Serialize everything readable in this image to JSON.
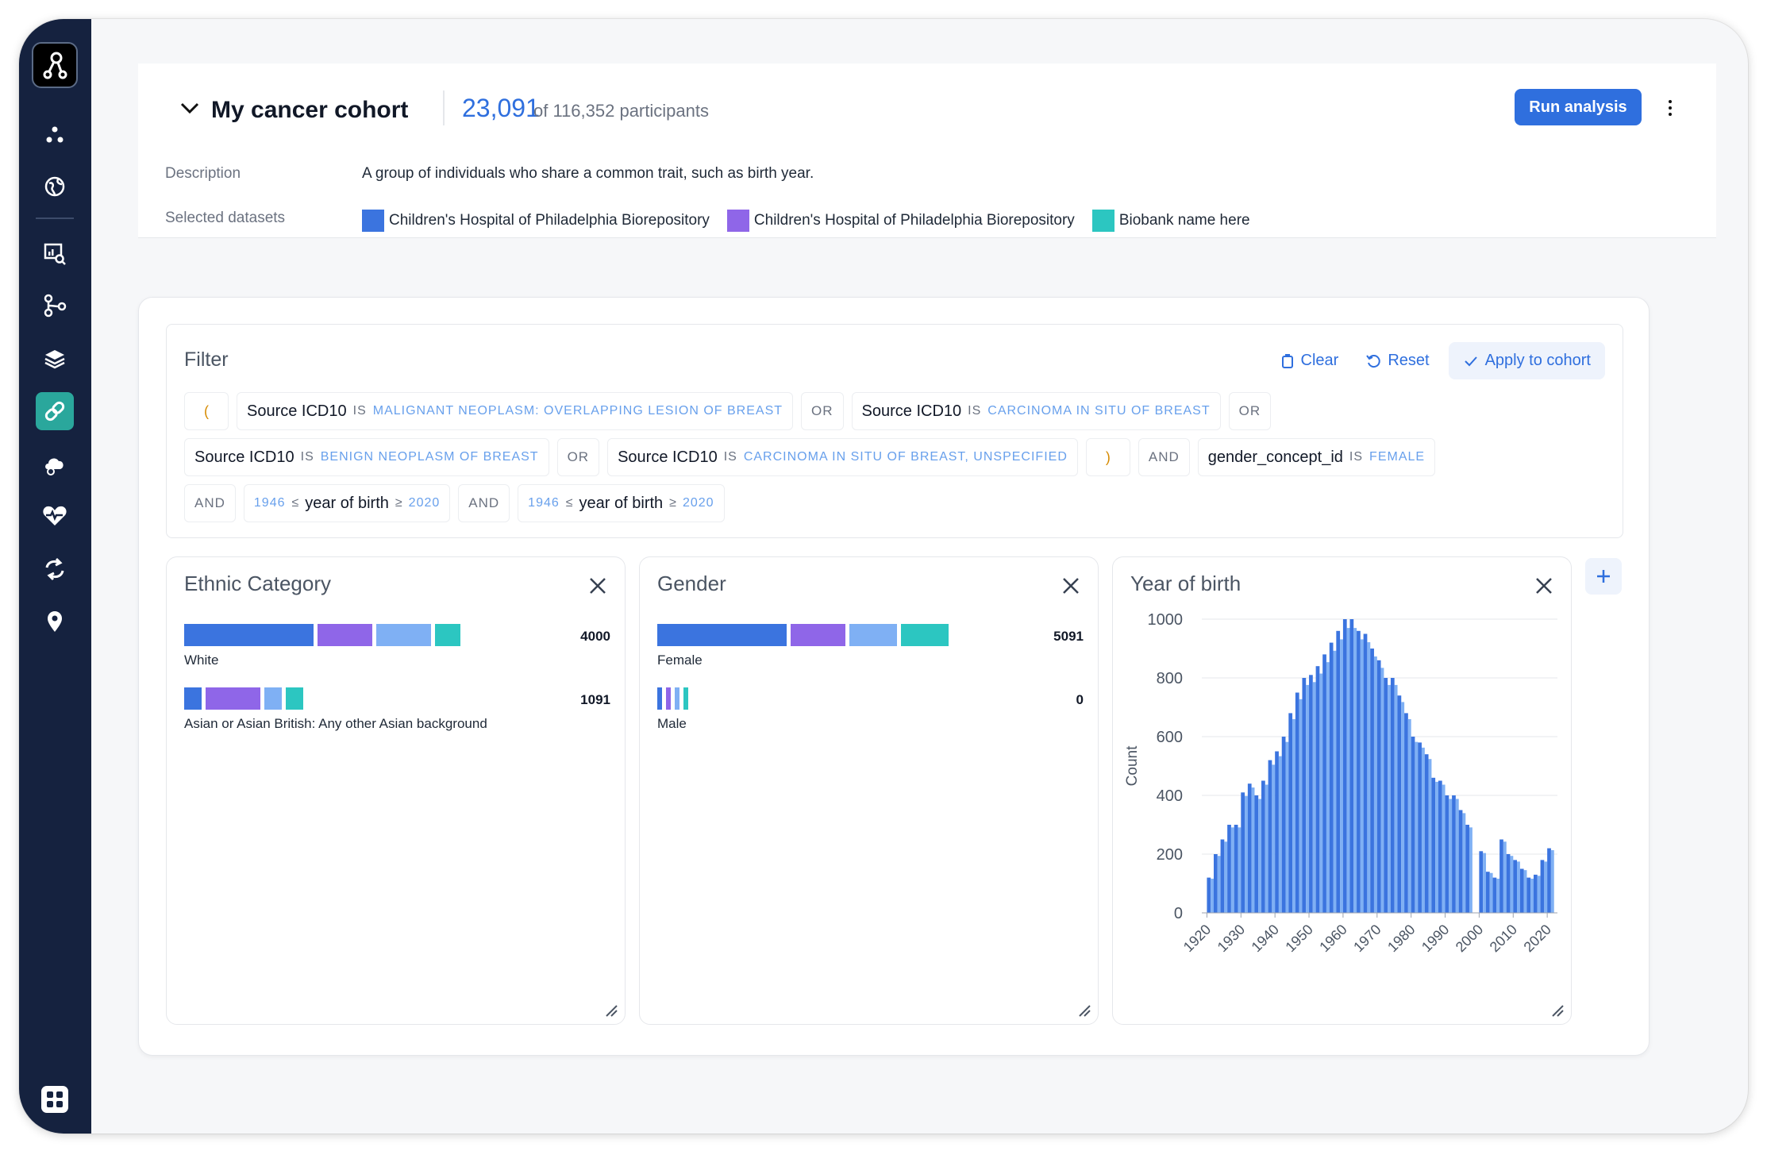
{
  "header": {
    "cohort_title": "My cancer cohort",
    "participant_count": "23,091",
    "participant_total": "of 116,352 participants",
    "run_button": "Run analysis",
    "description_label": "Description",
    "description_text": "A group of individuals who share a common trait, such as birth year.",
    "datasets_label": "Selected datasets",
    "datasets": [
      {
        "name": "Children's Hospital of Philadelphia Biorepository",
        "color": "#3b74df"
      },
      {
        "name": "Children's Hospital of Philadelphia Biorepository",
        "color": "#8f66e8"
      },
      {
        "name": "Biobank name here",
        "color": "#2cc6c1"
      }
    ]
  },
  "sidebar": {
    "icons": [
      "logo-icon",
      "nodes-icon",
      "globe-icon",
      "data-explorer-icon",
      "workflow-icon",
      "layers-icon",
      "link-icon",
      "cloud-gear-icon",
      "heart-icon",
      "sync-icon",
      "location-pin-icon",
      "apps-grid-icon"
    ],
    "active": "link-icon"
  },
  "filter": {
    "title": "Filter",
    "clear": "Clear",
    "reset": "Reset",
    "apply": "Apply to cohort",
    "rows": [
      [
        {
          "kind": "paren",
          "text": "("
        },
        {
          "kind": "cond",
          "field": "Source ICD10",
          "op": "IS",
          "value": "MALIGNANT NEOPLASM: OVERLAPPING LESION OF BREAST"
        },
        {
          "kind": "logic",
          "text": "OR"
        },
        {
          "kind": "cond",
          "field": "Source ICD10",
          "op": "IS",
          "value": "CARCINOMA IN SITU OF BREAST"
        },
        {
          "kind": "logic",
          "text": "OR"
        }
      ],
      [
        {
          "kind": "cond",
          "field": "Source ICD10",
          "op": "IS",
          "value": "BENIGN NEOPLASM OF BREAST"
        },
        {
          "kind": "logic",
          "text": "OR"
        },
        {
          "kind": "cond",
          "field": "Source ICD10",
          "op": "IS",
          "value": "CARCINOMA IN SITU OF BREAST, UNSPECIFIED"
        },
        {
          "kind": "paren",
          "text": ")"
        },
        {
          "kind": "logic",
          "text": "AND"
        },
        {
          "kind": "cond",
          "field": "gender_concept_id",
          "op": "IS",
          "value": "FEMALE"
        }
      ],
      [
        {
          "kind": "logic",
          "text": "AND"
        },
        {
          "kind": "range",
          "low": "1946",
          "le1": "≤",
          "field": "year of birth",
          "le2": "≥",
          "high": "2020"
        },
        {
          "kind": "logic",
          "text": "AND"
        },
        {
          "kind": "range",
          "low": "1946",
          "le1": "≤",
          "field": "year of birth",
          "le2": "≥",
          "high": "2020"
        }
      ]
    ]
  },
  "colors": {
    "blue": "#3b74df",
    "purple": "#8f66e8",
    "light_blue": "#7fb0f4",
    "teal": "#2cc6c1",
    "accent": "#2f6fde",
    "sidebar_bg": "#15223f",
    "active_item": "#2aa79c"
  },
  "cards": {
    "ethnic": {
      "title": "Ethnic Category",
      "rows": [
        {
          "label": "White",
          "value": "4000",
          "segments": [
            0.38,
            0.16,
            0.16,
            0.075
          ]
        },
        {
          "label": "Asian or Asian British: Any other Asian background",
          "value": "1091",
          "segments": [
            0.05,
            0.16,
            0.05,
            0.05
          ]
        }
      ]
    },
    "gender": {
      "title": "Gender",
      "rows": [
        {
          "label": "Female",
          "value": "5091",
          "segments": [
            0.38,
            0.16,
            0.14,
            0.14
          ]
        },
        {
          "label": "Male",
          "value": "0",
          "segments": [
            0.012,
            0.012,
            0.012,
            0.012
          ]
        }
      ]
    },
    "year_of_birth": {
      "title": "Year of birth"
    }
  },
  "chart_data": {
    "type": "bar",
    "title": "Year of birth",
    "xlabel": "",
    "ylabel": "Count",
    "ylim": [
      0,
      1000
    ],
    "yticks": [
      0,
      200,
      400,
      600,
      800,
      1000
    ],
    "xticks": [
      "1920",
      "1930",
      "1940",
      "1950",
      "1960",
      "1970",
      "1980",
      "1990",
      "2000",
      "2010",
      "2020"
    ],
    "x": [
      1920,
      1922,
      1924,
      1926,
      1928,
      1930,
      1932,
      1934,
      1936,
      1938,
      1940,
      1942,
      1944,
      1946,
      1948,
      1950,
      1952,
      1954,
      1956,
      1958,
      1960,
      1962,
      1964,
      1966,
      1968,
      1970,
      1972,
      1974,
      1976,
      1978,
      1980,
      1982,
      1984,
      1986,
      1988,
      1990,
      1992,
      1994,
      1996,
      2000,
      2002,
      2004,
      2006,
      2008,
      2010,
      2012,
      2014,
      2016,
      2018,
      2020
    ],
    "values": [
      120,
      200,
      250,
      300,
      300,
      410,
      440,
      400,
      450,
      520,
      550,
      600,
      680,
      750,
      800,
      810,
      840,
      880,
      920,
      960,
      1000,
      1000,
      960,
      950,
      900,
      860,
      800,
      800,
      740,
      680,
      600,
      580,
      540,
      460,
      450,
      400,
      400,
      350,
      300,
      210,
      140,
      120,
      250,
      200,
      180,
      150,
      120,
      130,
      180,
      220
    ]
  }
}
